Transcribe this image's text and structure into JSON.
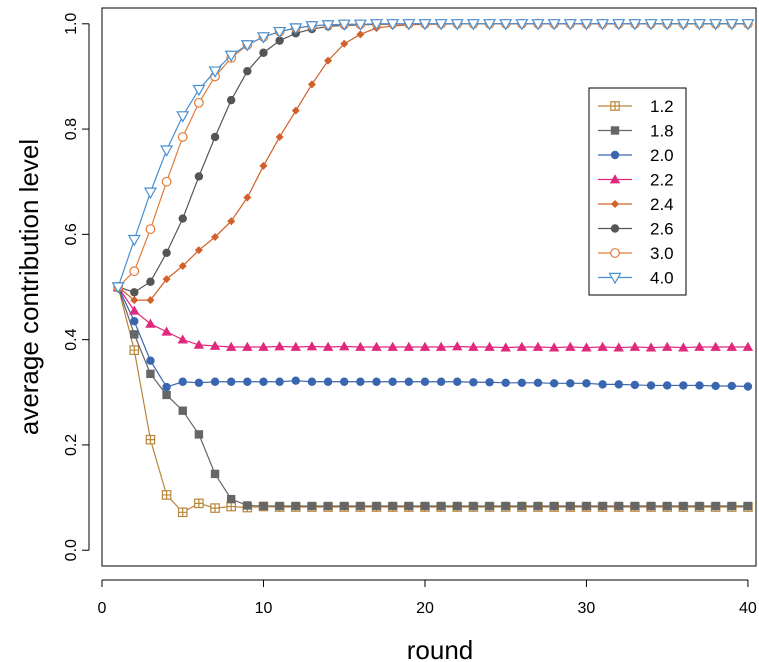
{
  "chart_data": {
    "type": "line",
    "title": "",
    "xlabel": "round",
    "ylabel": "average contribution level",
    "xlim": [
      0,
      40.5
    ],
    "ylim": [
      -0.03,
      1.03
    ],
    "x_ticks": [
      0,
      10,
      20,
      30,
      40
    ],
    "y_ticks": [
      0.0,
      0.2,
      0.4,
      0.6,
      0.8,
      1.0
    ],
    "x_tick_labels": [
      "0",
      "10",
      "20",
      "30",
      "40"
    ],
    "y_tick_labels": [
      "0.0",
      "0.2",
      "0.4",
      "0.6",
      "0.8",
      "1.0"
    ],
    "grid": false,
    "legend_position": "top-right",
    "x": [
      1,
      2,
      3,
      4,
      5,
      6,
      7,
      8,
      9,
      10,
      11,
      12,
      13,
      14,
      15,
      16,
      17,
      18,
      19,
      20,
      21,
      22,
      23,
      24,
      25,
      26,
      27,
      28,
      29,
      30,
      31,
      32,
      33,
      34,
      35,
      36,
      37,
      38,
      39,
      40
    ],
    "series": [
      {
        "name": "1.2",
        "color": "#b8863b",
        "marker": "square-cross",
        "values": [
          0.5,
          0.38,
          0.21,
          0.105,
          0.072,
          0.089,
          0.08,
          0.083,
          0.081,
          0.083,
          0.082,
          0.082,
          0.082,
          0.082,
          0.082,
          0.082,
          0.082,
          0.082,
          0.082,
          0.082,
          0.082,
          0.082,
          0.082,
          0.082,
          0.082,
          0.082,
          0.082,
          0.082,
          0.082,
          0.082,
          0.082,
          0.082,
          0.082,
          0.082,
          0.082,
          0.082,
          0.082,
          0.082,
          0.082,
          0.082
        ]
      },
      {
        "name": "1.8",
        "color": "#666666",
        "marker": "filled-square",
        "values": [
          0.5,
          0.41,
          0.335,
          0.295,
          0.265,
          0.22,
          0.145,
          0.097,
          0.085,
          0.084,
          0.084,
          0.084,
          0.084,
          0.084,
          0.084,
          0.084,
          0.084,
          0.084,
          0.084,
          0.084,
          0.084,
          0.084,
          0.084,
          0.084,
          0.084,
          0.084,
          0.084,
          0.084,
          0.084,
          0.084,
          0.084,
          0.084,
          0.084,
          0.084,
          0.084,
          0.084,
          0.084,
          0.084,
          0.084,
          0.084
        ]
      },
      {
        "name": "2.0",
        "color": "#3a66b0",
        "marker": "filled-circle",
        "values": [
          0.5,
          0.435,
          0.36,
          0.31,
          0.32,
          0.318,
          0.32,
          0.32,
          0.32,
          0.32,
          0.32,
          0.322,
          0.32,
          0.32,
          0.32,
          0.32,
          0.32,
          0.32,
          0.32,
          0.32,
          0.32,
          0.32,
          0.319,
          0.319,
          0.318,
          0.318,
          0.318,
          0.317,
          0.317,
          0.317,
          0.315,
          0.315,
          0.314,
          0.313,
          0.313,
          0.313,
          0.313,
          0.312,
          0.312,
          0.311
        ]
      },
      {
        "name": "2.2",
        "color": "#e0287c",
        "marker": "filled-triangle",
        "values": [
          0.5,
          0.455,
          0.43,
          0.415,
          0.4,
          0.39,
          0.388,
          0.386,
          0.386,
          0.386,
          0.387,
          0.386,
          0.387,
          0.386,
          0.387,
          0.386,
          0.386,
          0.386,
          0.386,
          0.386,
          0.386,
          0.387,
          0.386,
          0.386,
          0.385,
          0.386,
          0.386,
          0.385,
          0.386,
          0.385,
          0.386,
          0.385,
          0.386,
          0.385,
          0.386,
          0.385,
          0.386,
          0.386,
          0.386,
          0.386
        ]
      },
      {
        "name": "2.4",
        "color": "#d2602a",
        "marker": "filled-diamond",
        "values": [
          0.5,
          0.475,
          0.475,
          0.515,
          0.54,
          0.57,
          0.595,
          0.625,
          0.67,
          0.73,
          0.785,
          0.835,
          0.885,
          0.93,
          0.962,
          0.98,
          0.992,
          0.996,
          0.998,
          0.999,
          0.999,
          1.0,
          1.0,
          1.0,
          1.0,
          1.0,
          1.0,
          1.0,
          1.0,
          1.0,
          1.0,
          1.0,
          1.0,
          1.0,
          1.0,
          1.0,
          1.0,
          1.0,
          1.0,
          1.0
        ]
      },
      {
        "name": "2.6",
        "color": "#555555",
        "marker": "filled-circle",
        "values": [
          0.5,
          0.49,
          0.51,
          0.565,
          0.63,
          0.71,
          0.785,
          0.855,
          0.91,
          0.945,
          0.968,
          0.982,
          0.99,
          0.995,
          0.997,
          0.998,
          0.999,
          0.999,
          1.0,
          1.0,
          1.0,
          1.0,
          1.0,
          1.0,
          1.0,
          1.0,
          1.0,
          1.0,
          1.0,
          1.0,
          1.0,
          1.0,
          1.0,
          1.0,
          1.0,
          1.0,
          1.0,
          1.0,
          1.0,
          1.0
        ]
      },
      {
        "name": "3.0",
        "color": "#e07c3a",
        "marker": "open-circle",
        "values": [
          0.5,
          0.53,
          0.61,
          0.7,
          0.785,
          0.85,
          0.9,
          0.935,
          0.96,
          0.975,
          0.985,
          0.992,
          0.996,
          0.998,
          0.999,
          0.999,
          1.0,
          1.0,
          1.0,
          1.0,
          1.0,
          1.0,
          1.0,
          1.0,
          1.0,
          1.0,
          1.0,
          1.0,
          1.0,
          1.0,
          1.0,
          1.0,
          1.0,
          1.0,
          1.0,
          1.0,
          1.0,
          1.0,
          1.0,
          1.0
        ]
      },
      {
        "name": "4.0",
        "color": "#4a8fd0",
        "marker": "open-triangle-down",
        "values": [
          0.5,
          0.59,
          0.68,
          0.76,
          0.825,
          0.875,
          0.91,
          0.94,
          0.96,
          0.975,
          0.985,
          0.992,
          0.996,
          0.998,
          0.999,
          0.999,
          1.0,
          1.0,
          1.0,
          1.0,
          1.0,
          1.0,
          1.0,
          1.0,
          1.0,
          1.0,
          1.0,
          1.0,
          1.0,
          1.0,
          1.0,
          1.0,
          1.0,
          1.0,
          1.0,
          1.0,
          1.0,
          1.0,
          1.0,
          1.0
        ]
      }
    ]
  }
}
